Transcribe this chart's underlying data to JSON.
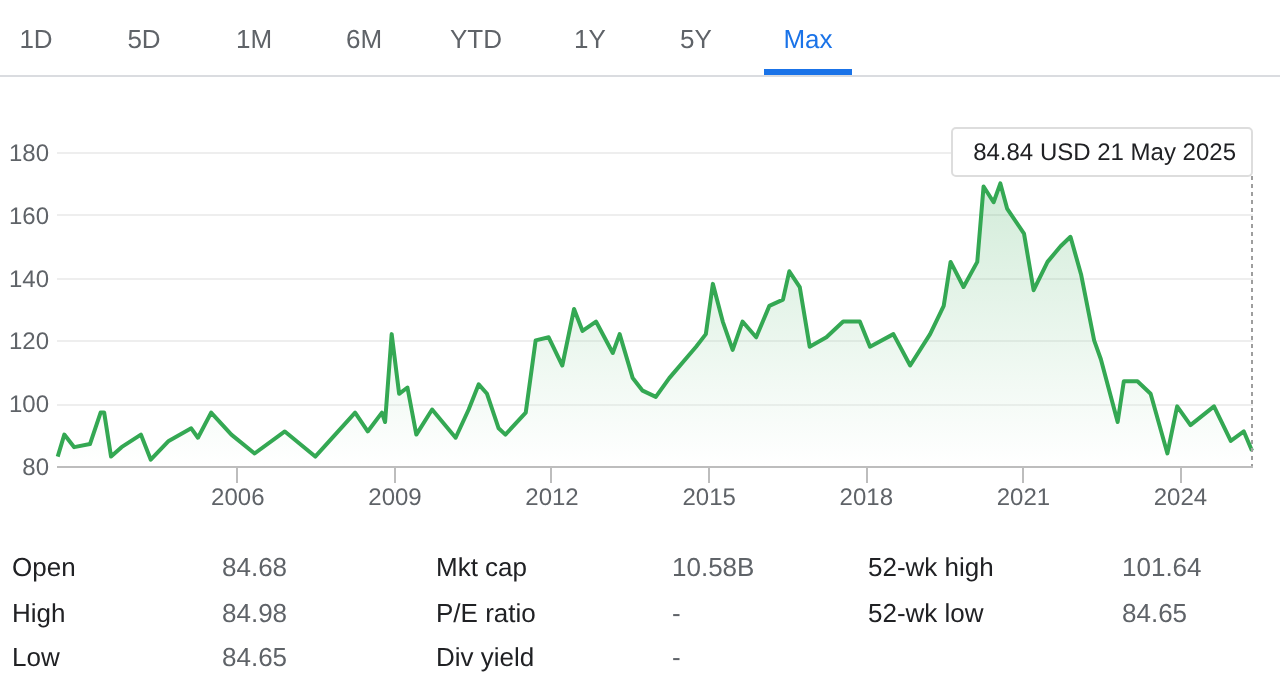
{
  "chart_data": {
    "type": "area",
    "x": [
      "2002-08-01",
      "2002-09-16",
      "2002-11-24",
      "2003-03-14",
      "2003-05-27",
      "2003-06-21",
      "2003-08-08",
      "2003-10-20",
      "2004-03-03",
      "2004-05-11",
      "2004-09-13",
      "2005-02-17",
      "2005-04-05",
      "2005-07-06",
      "2005-11-24",
      "2006-05-05",
      "2006-12-02",
      "2007-07-02",
      "2008-04-05",
      "2008-07-02",
      "2008-10-09",
      "2008-10-31",
      "2008-12-16",
      "2009-02-06",
      "2009-04-05",
      "2009-06-06",
      "2009-09-24",
      "2010-03-07",
      "2010-06-06",
      "2010-08-15",
      "2010-10-12",
      "2011-01-01",
      "2011-02-17",
      "2011-07-09",
      "2011-09-16",
      "2011-12-16",
      "2012-03-20",
      "2012-06-10",
      "2012-08-08",
      "2012-11-10",
      "2013-03-07",
      "2013-04-24",
      "2013-07-24",
      "2013-10-01",
      "2014-01-01",
      "2014-04-05",
      "2014-10-09",
      "2014-12-16",
      "2015-02-03",
      "2015-04-13",
      "2015-06-21",
      "2015-08-29",
      "2015-12-02",
      "2016-03-03",
      "2016-06-06",
      "2016-07-20",
      "2016-10-01",
      "2016-12-09",
      "2017-04-05",
      "2017-07-31",
      "2017-11-24",
      "2018-02-03",
      "2018-07-16",
      "2018-11-10",
      "2019-03-29",
      "2019-07-02",
      "2019-08-19",
      "2019-11-17",
      "2020-02-21",
      "2020-04-05",
      "2020-06-14",
      "2020-07-31",
      "2020-09-16",
      "2021-01-12",
      "2021-03-20",
      "2021-06-25",
      "2021-09-24",
      "2021-12-02",
      "2022-02-14",
      "2022-05-16",
      "2022-07-02",
      "2022-10-27",
      "2022-12-09",
      "2023-03-14",
      "2023-06-14",
      "2023-10-09",
      "2023-12-16",
      "2024-03-18",
      "2024-08-29",
      "2024-12-24",
      "2025-03-25",
      "2025-05-21"
    ],
    "series": [
      {
        "color": "#34a853",
        "values": [
          83,
          90,
          86,
          87,
          97,
          97,
          83,
          86,
          90,
          82,
          88,
          92,
          89,
          97,
          90,
          84,
          91,
          83,
          97,
          91,
          97,
          94,
          122,
          103,
          105,
          90,
          98,
          89,
          98,
          106,
          103,
          92,
          90,
          97,
          120,
          121,
          112,
          130,
          123,
          126,
          116,
          122,
          108,
          104,
          102,
          108,
          118,
          122,
          138,
          126,
          117,
          126,
          121,
          131,
          133,
          142,
          137,
          118,
          121,
          126,
          126,
          118,
          122,
          112,
          122,
          131,
          145,
          137,
          145,
          169,
          164,
          170,
          162,
          154,
          136,
          145,
          150,
          153,
          141,
          120,
          114,
          94,
          107,
          107,
          103,
          84,
          99,
          93,
          99,
          88,
          91,
          84.84
        ]
      }
    ],
    "xlim": [
      "2002-07-20",
      "2025-05-21"
    ],
    "xticks": [
      {
        "value": "2006",
        "label": "2006"
      },
      {
        "value": "2009",
        "label": "2009"
      },
      {
        "value": "2012",
        "label": "2012"
      },
      {
        "value": "2015",
        "label": "2015"
      },
      {
        "value": "2018",
        "label": "2018"
      },
      {
        "value": "2021",
        "label": "2021"
      },
      {
        "value": "2024",
        "label": "2024"
      }
    ],
    "ylim": [
      80,
      180
    ],
    "yticks": [
      80,
      100,
      120,
      140,
      160,
      180
    ],
    "grid": "y",
    "ref_lines": [
      {
        "axis": "x",
        "value": "2025-05-21",
        "label": "84.84 USD  21 May 2025",
        "line_style": "dotted",
        "color": "#9e9e9e"
      }
    ],
    "annotations": [
      "1D",
      "5D",
      "1M",
      "6M",
      "YTD",
      "1Y",
      "5Y",
      "Max",
      "Open",
      "84.68",
      "Mkt cap",
      "10.58B",
      "52-wk high",
      "101.64",
      "High",
      "84.98",
      "P/E ratio",
      "-",
      "52-wk low",
      "84.65",
      "Low",
      "84.65",
      "Div yield",
      "-"
    ]
  }
}
